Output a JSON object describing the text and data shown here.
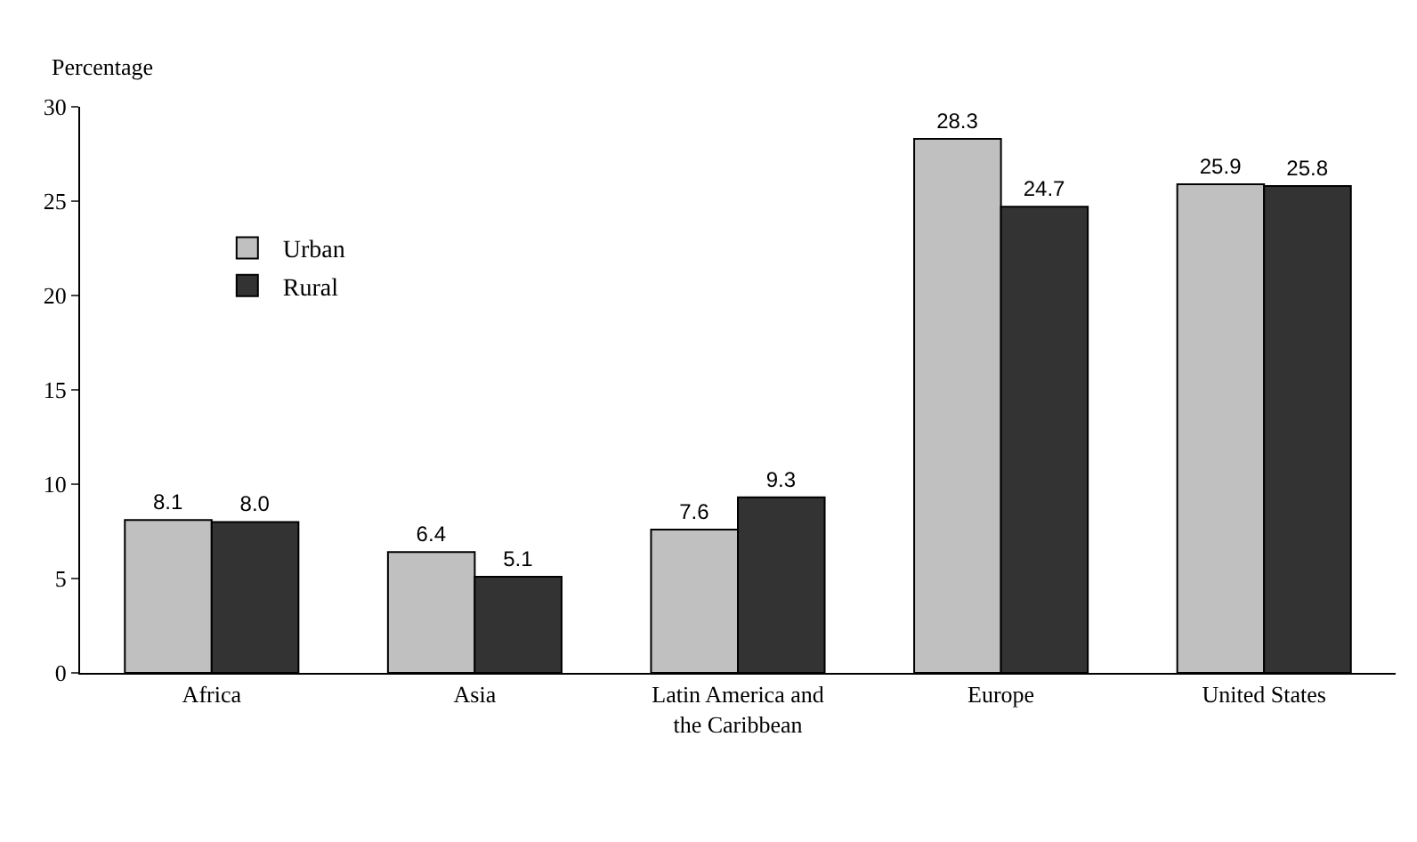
{
  "chart_data": {
    "type": "bar",
    "ylabel": "Percentage",
    "categories": [
      "Africa",
      "Asia",
      "Latin America and the Caribbean",
      "Europe",
      "United States"
    ],
    "series": [
      {
        "name": "Urban",
        "color": "#c0c0c0",
        "values": [
          8.1,
          6.4,
          7.6,
          28.3,
          25.9
        ],
        "value_labels": [
          "8.1",
          "6.4",
          "7.6",
          "28.3",
          "25.9"
        ]
      },
      {
        "name": "Rural",
        "color": "#333333",
        "values": [
          8.0,
          5.1,
          9.3,
          24.7,
          25.8
        ],
        "value_labels": [
          "8.0",
          "5.1",
          "9.3",
          "24.7",
          "25.8"
        ]
      }
    ],
    "ylim": [
      0,
      30
    ],
    "yticks": [
      0,
      5,
      10,
      15,
      20,
      25,
      30
    ],
    "legend": "top left"
  }
}
